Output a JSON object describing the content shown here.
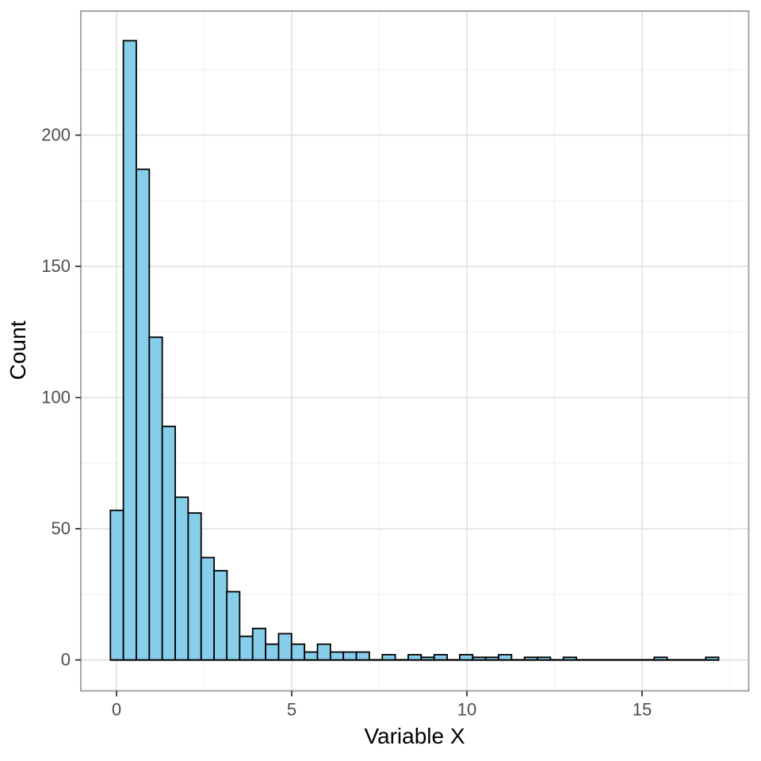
{
  "chart_data": {
    "type": "bar",
    "subtype": "histogram",
    "title": "",
    "xlabel": "Variable X",
    "ylabel": "Count",
    "x_ticks": [
      0,
      5,
      10,
      15
    ],
    "y_ticks": [
      0,
      50,
      100,
      150,
      200
    ],
    "x_minor_ticks": [
      2.5,
      7.5,
      12.5,
      17.5
    ],
    "y_minor_ticks": [
      25,
      75,
      125,
      175,
      225
    ],
    "xlim": [
      -1.06,
      18.07
    ],
    "ylim": [
      -11.8,
      247.8
    ],
    "bin_width": 0.3694,
    "grid": "on",
    "legend": "none",
    "bins": [
      {
        "c": 0.01,
        "n": 57
      },
      {
        "c": 0.38,
        "n": 236
      },
      {
        "c": 0.75,
        "n": 187
      },
      {
        "c": 1.12,
        "n": 123
      },
      {
        "c": 1.49,
        "n": 89
      },
      {
        "c": 1.86,
        "n": 62
      },
      {
        "c": 2.23,
        "n": 56
      },
      {
        "c": 2.6,
        "n": 39
      },
      {
        "c": 2.97,
        "n": 34
      },
      {
        "c": 3.33,
        "n": 26
      },
      {
        "c": 3.7,
        "n": 9
      },
      {
        "c": 4.07,
        "n": 12
      },
      {
        "c": 4.44,
        "n": 6
      },
      {
        "c": 4.81,
        "n": 10
      },
      {
        "c": 5.18,
        "n": 6
      },
      {
        "c": 5.55,
        "n": 3
      },
      {
        "c": 5.92,
        "n": 6
      },
      {
        "c": 6.29,
        "n": 3
      },
      {
        "c": 6.66,
        "n": 3
      },
      {
        "c": 7.03,
        "n": 3
      },
      {
        "c": 7.4,
        "n": 0
      },
      {
        "c": 7.77,
        "n": 2
      },
      {
        "c": 8.14,
        "n": 0
      },
      {
        "c": 8.51,
        "n": 2
      },
      {
        "c": 8.88,
        "n": 1
      },
      {
        "c": 9.25,
        "n": 2
      },
      {
        "c": 9.62,
        "n": 0
      },
      {
        "c": 9.98,
        "n": 2
      },
      {
        "c": 10.35,
        "n": 1
      },
      {
        "c": 10.72,
        "n": 1
      },
      {
        "c": 11.09,
        "n": 2
      },
      {
        "c": 11.46,
        "n": 0
      },
      {
        "c": 11.83,
        "n": 1
      },
      {
        "c": 12.2,
        "n": 1
      },
      {
        "c": 12.57,
        "n": 0
      },
      {
        "c": 12.94,
        "n": 1
      },
      {
        "c": 13.31,
        "n": 0
      },
      {
        "c": 13.68,
        "n": 0
      },
      {
        "c": 14.05,
        "n": 0
      },
      {
        "c": 14.42,
        "n": 0
      },
      {
        "c": 14.79,
        "n": 0
      },
      {
        "c": 15.16,
        "n": 0
      },
      {
        "c": 15.53,
        "n": 1
      },
      {
        "c": 15.9,
        "n": 0
      },
      {
        "c": 16.27,
        "n": 0
      },
      {
        "c": 16.64,
        "n": 0
      },
      {
        "c": 17.0,
        "n": 1
      }
    ]
  },
  "colors": {
    "background": "#ffffff",
    "bar_fill": "#87CEEB",
    "bar_stroke": "#000000",
    "grid_major": "#E3E3E3",
    "grid_minor": "#F0F0F0",
    "panel_border": "#A6A6A6",
    "tick_mark": "#333333",
    "tick_label": "#4D4D4D",
    "axis_title": "#000000"
  }
}
